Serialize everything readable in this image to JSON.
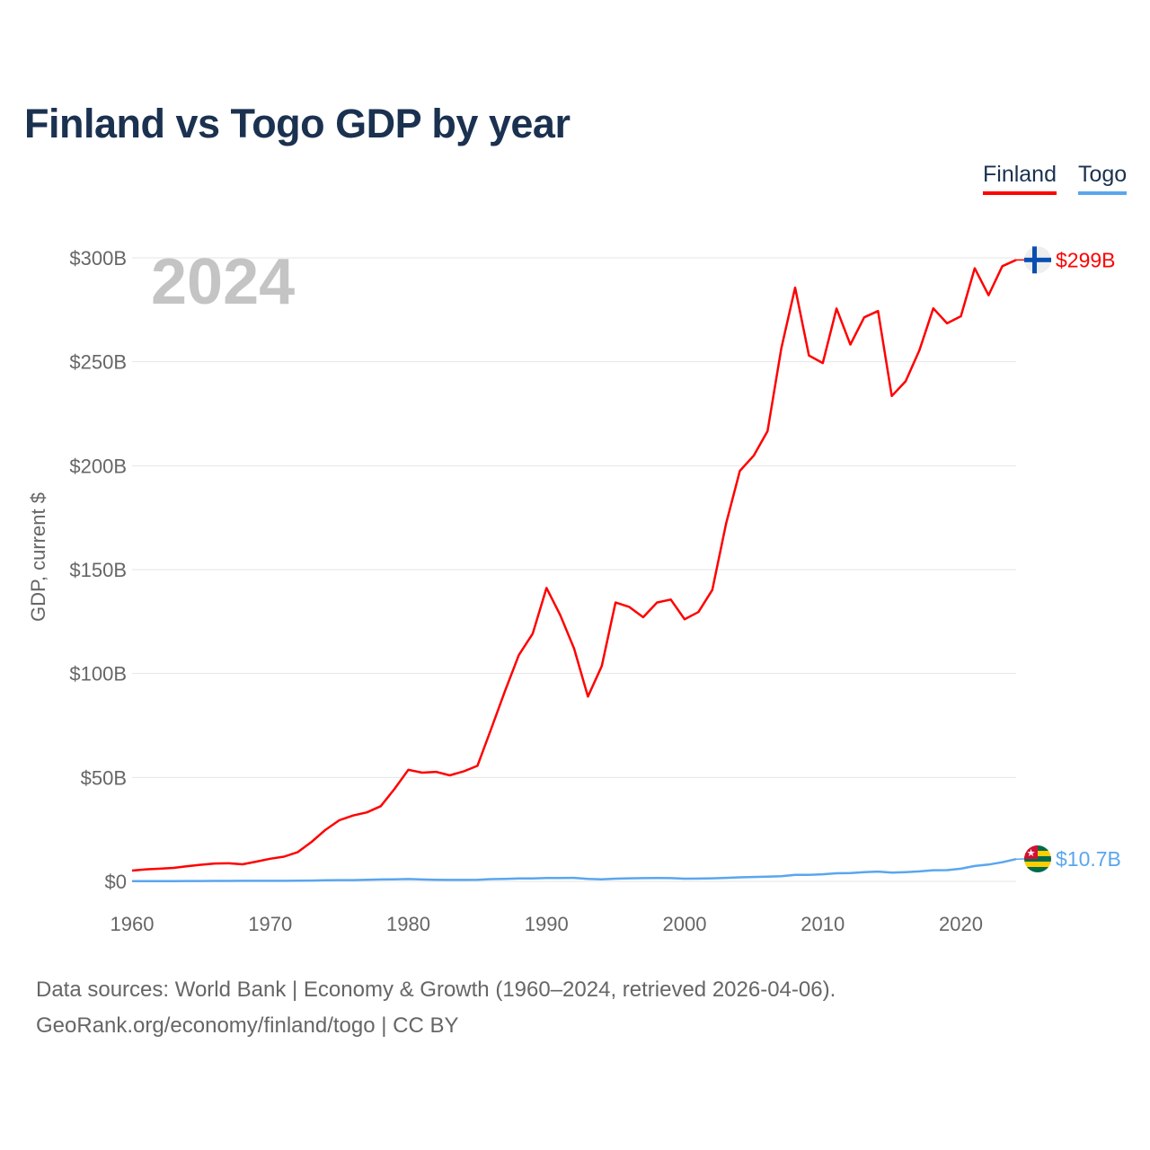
{
  "chart_data": {
    "type": "line",
    "title": "Finland vs Togo GDP by year",
    "ylabel": "GDP, current $",
    "xlabel": "",
    "year_label": "2024",
    "xlim": [
      1960,
      2024
    ],
    "ylim": [
      0,
      300
    ],
    "x_ticks": [
      "1960",
      "1970",
      "1980",
      "1990",
      "2000",
      "2010",
      "2020"
    ],
    "y_ticks": [
      {
        "v": 0,
        "label": "$0"
      },
      {
        "v": 50,
        "label": "$50B"
      },
      {
        "v": 100,
        "label": "$100B"
      },
      {
        "v": 150,
        "label": "$150B"
      },
      {
        "v": 200,
        "label": "$200B"
      },
      {
        "v": 250,
        "label": "$250B"
      },
      {
        "v": 300,
        "label": "$300B"
      }
    ],
    "grid": true,
    "legend_position": "top-right",
    "x_start": 1960,
    "series": [
      {
        "name": "Finland",
        "color": "#ff0000",
        "end_label": "$299B",
        "flag": "finland-flag",
        "values": [
          5.2,
          5.8,
          6.1,
          6.5,
          7.3,
          8.0,
          8.6,
          8.7,
          8.2,
          9.5,
          10.9,
          11.9,
          14.1,
          19.0,
          24.8,
          29.4,
          31.7,
          33.2,
          36.2,
          44.5,
          53.7,
          52.3,
          52.7,
          51.0,
          52.9,
          55.6,
          73.5,
          91.6,
          108.9,
          119.2,
          141.2,
          128.1,
          112.0,
          88.9,
          103.6,
          134.2,
          132.0,
          127.1,
          134.2,
          135.6,
          126.1,
          129.6,
          140.2,
          172.0,
          197.5,
          204.8,
          216.6,
          256.4,
          285.7,
          253.0,
          249.4,
          275.6,
          258.3,
          271.4,
          274.4,
          233.5,
          240.6,
          255.6,
          275.7,
          268.5,
          271.9,
          295.0,
          282.0,
          296.0,
          299.0
        ]
      },
      {
        "name": "Togo",
        "color": "#5aa6ef",
        "end_label": "$10.7B",
        "flag": "togo-flag",
        "values": [
          0.12,
          0.13,
          0.13,
          0.14,
          0.17,
          0.19,
          0.21,
          0.22,
          0.25,
          0.28,
          0.25,
          0.28,
          0.33,
          0.41,
          0.56,
          0.62,
          0.62,
          0.75,
          0.89,
          1.0,
          1.14,
          0.92,
          0.79,
          0.71,
          0.7,
          0.75,
          1.06,
          1.22,
          1.37,
          1.37,
          1.63,
          1.62,
          1.68,
          1.23,
          0.98,
          1.31,
          1.49,
          1.57,
          1.61,
          1.56,
          1.29,
          1.33,
          1.47,
          1.68,
          1.94,
          2.11,
          2.23,
          2.52,
          3.16,
          3.16,
          3.43,
          3.88,
          4.01,
          4.46,
          4.7,
          4.19,
          4.45,
          4.81,
          5.37,
          5.39,
          6.1,
          7.4,
          8.1,
          9.2,
          10.7
        ]
      }
    ]
  },
  "footer": {
    "line1": "Data sources: World Bank | Economy & Growth (1960–2024, retrieved 2026-04-06).",
    "line2": "GeoRank.org/economy/finland/togo | CC BY"
  }
}
